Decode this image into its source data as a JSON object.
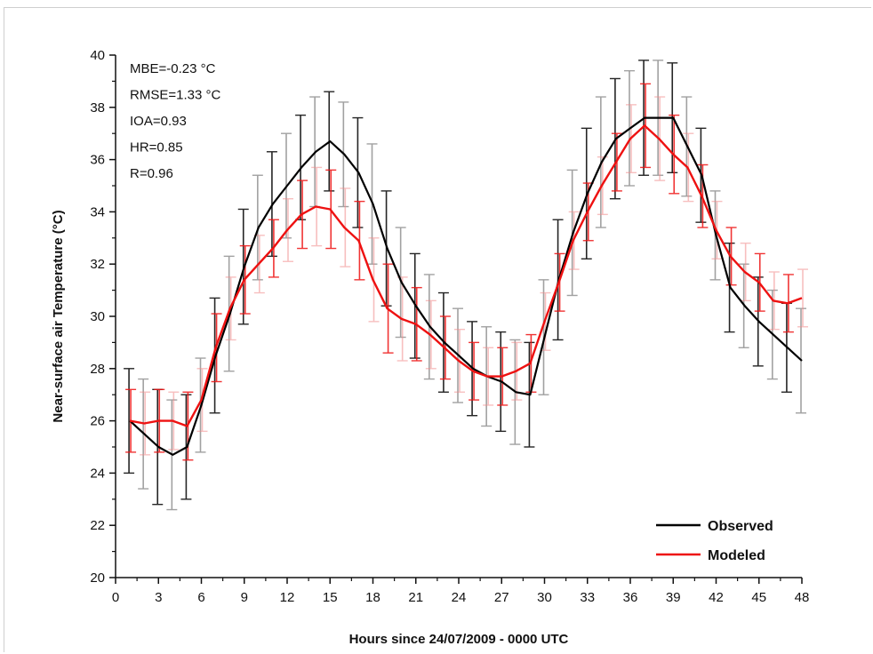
{
  "chart_data": {
    "type": "line",
    "xlabel": "Hours since 24/07/2009 - 0000 UTC",
    "ylabel": "Near-surface air Temperature (°C)",
    "xlim": [
      0,
      48
    ],
    "ylim": [
      20,
      40
    ],
    "x_ticks": [
      0,
      3,
      6,
      9,
      12,
      15,
      18,
      21,
      24,
      27,
      30,
      33,
      36,
      39,
      42,
      45,
      48
    ],
    "y_ticks": [
      20,
      22,
      24,
      26,
      28,
      30,
      32,
      34,
      36,
      38,
      40
    ],
    "x_tick_labels": [
      "0",
      "3",
      "6",
      "9",
      "12",
      "15",
      "18",
      "21",
      "24",
      "27",
      "30",
      "33",
      "36",
      "39",
      "42",
      "45",
      "48"
    ],
    "y_tick_labels": [
      "20",
      "22",
      "24",
      "26",
      "28",
      "30",
      "32",
      "34",
      "36",
      "38",
      "40"
    ],
    "stats": [
      "MBE=-0.23 °C",
      "RMSE=1.33 °C",
      "IOA=0.93",
      "HR=0.85",
      "R=0.96"
    ],
    "legend_position": "bottom-right",
    "series": [
      {
        "name": "Observed",
        "color": "#000000",
        "errorbar_color": "#555555",
        "x": [
          1,
          2,
          3,
          4,
          5,
          6,
          7,
          8,
          9,
          10,
          11,
          12,
          13,
          14,
          15,
          16,
          17,
          18,
          19,
          20,
          21,
          22,
          23,
          24,
          25,
          26,
          27,
          28,
          29,
          30,
          31,
          32,
          33,
          34,
          35,
          36,
          37,
          38,
          39,
          40,
          41,
          42,
          43,
          44,
          45,
          46,
          47,
          48
        ],
        "y": [
          26.0,
          25.5,
          25.0,
          24.7,
          25.0,
          26.6,
          28.5,
          30.1,
          31.9,
          33.4,
          34.3,
          35.0,
          35.7,
          36.3,
          36.7,
          36.2,
          35.5,
          34.3,
          32.6,
          31.3,
          30.4,
          29.6,
          29.0,
          28.5,
          28.0,
          27.7,
          27.5,
          27.1,
          27.0,
          29.2,
          31.4,
          33.2,
          34.7,
          35.9,
          36.8,
          37.2,
          37.6,
          37.6,
          37.6,
          36.5,
          35.4,
          33.1,
          31.1,
          30.4,
          29.8,
          29.3,
          28.8,
          28.3
        ],
        "error": [
          2.0,
          2.1,
          2.2,
          2.1,
          2.0,
          1.8,
          2.2,
          2.2,
          2.2,
          2.0,
          2.0,
          2.0,
          2.0,
          2.1,
          1.9,
          2.0,
          2.1,
          2.3,
          2.2,
          2.1,
          2.0,
          2.0,
          1.9,
          1.8,
          1.8,
          1.9,
          1.9,
          2.0,
          2.0,
          2.2,
          2.3,
          2.4,
          2.5,
          2.5,
          2.3,
          2.2,
          2.2,
          2.2,
          2.1,
          1.9,
          1.8,
          1.7,
          1.7,
          1.6,
          1.7,
          1.7,
          1.7,
          2.0
        ]
      },
      {
        "name": "Modeled",
        "color": "#ee1111",
        "errorbar_color": "#f28b8b",
        "x": [
          1,
          2,
          3,
          4,
          5,
          6,
          7,
          8,
          9,
          10,
          11,
          12,
          13,
          14,
          15,
          16,
          17,
          18,
          19,
          20,
          21,
          22,
          23,
          24,
          25,
          26,
          27,
          28,
          29,
          30,
          31,
          32,
          33,
          34,
          35,
          36,
          37,
          38,
          39,
          40,
          41,
          42,
          43,
          44,
          45,
          46,
          47,
          48
        ],
        "y": [
          26.0,
          25.9,
          26.0,
          26.0,
          25.8,
          26.8,
          28.8,
          30.3,
          31.4,
          32.0,
          32.6,
          33.3,
          33.9,
          34.2,
          34.1,
          33.4,
          32.9,
          31.4,
          30.3,
          29.9,
          29.7,
          29.3,
          28.8,
          28.3,
          27.9,
          27.7,
          27.7,
          27.9,
          28.2,
          29.8,
          31.3,
          32.9,
          34.0,
          35.0,
          35.9,
          36.8,
          37.3,
          36.8,
          36.2,
          35.7,
          34.6,
          33.3,
          32.3,
          31.7,
          31.3,
          30.6,
          30.5,
          30.7
        ],
        "error": [
          1.2,
          1.2,
          1.2,
          1.1,
          1.3,
          1.2,
          1.3,
          1.2,
          1.3,
          1.1,
          1.1,
          1.2,
          1.3,
          1.5,
          1.5,
          1.5,
          1.5,
          1.6,
          1.7,
          1.6,
          1.4,
          1.3,
          1.2,
          1.2,
          1.1,
          1.1,
          1.1,
          1.1,
          1.1,
          1.1,
          1.1,
          1.1,
          1.1,
          1.1,
          1.1,
          1.3,
          1.6,
          1.6,
          1.5,
          1.3,
          1.2,
          1.1,
          1.1,
          1.1,
          1.1,
          1.1,
          1.1,
          1.1
        ]
      }
    ]
  }
}
